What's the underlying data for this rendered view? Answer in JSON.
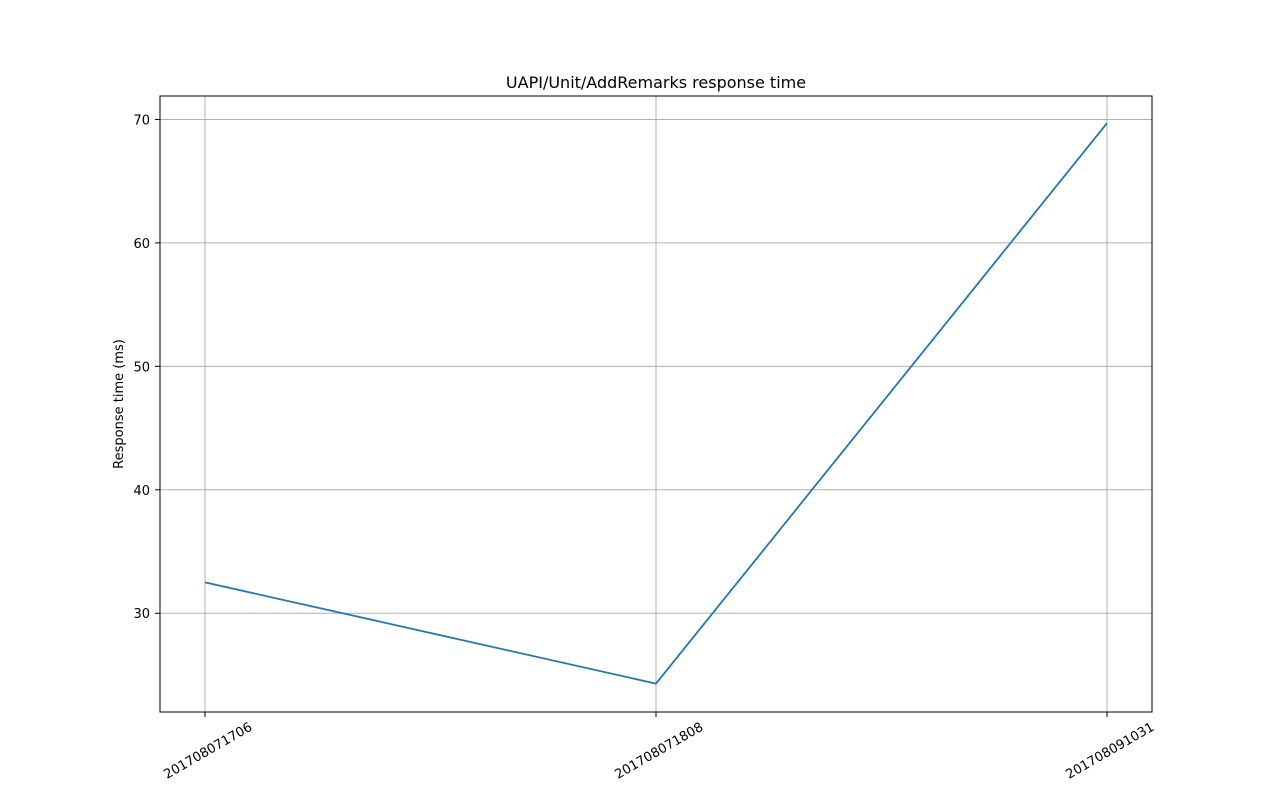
{
  "chart_data": {
    "type": "line",
    "title": "UAPI/Unit/AddRemarks  response time",
    "xlabel": "",
    "ylabel": "Response time  (ms)",
    "categories": [
      "201708071706",
      "201708071808",
      "201708091031"
    ],
    "series": [
      {
        "values": [
          32.5,
          24.3,
          69.7
        ],
        "color": "#1f77b4"
      }
    ],
    "yticks": [
      30,
      40,
      50,
      60,
      70
    ],
    "ylim": [
      22,
      71.9
    ],
    "grid": true,
    "legend": "none"
  }
}
